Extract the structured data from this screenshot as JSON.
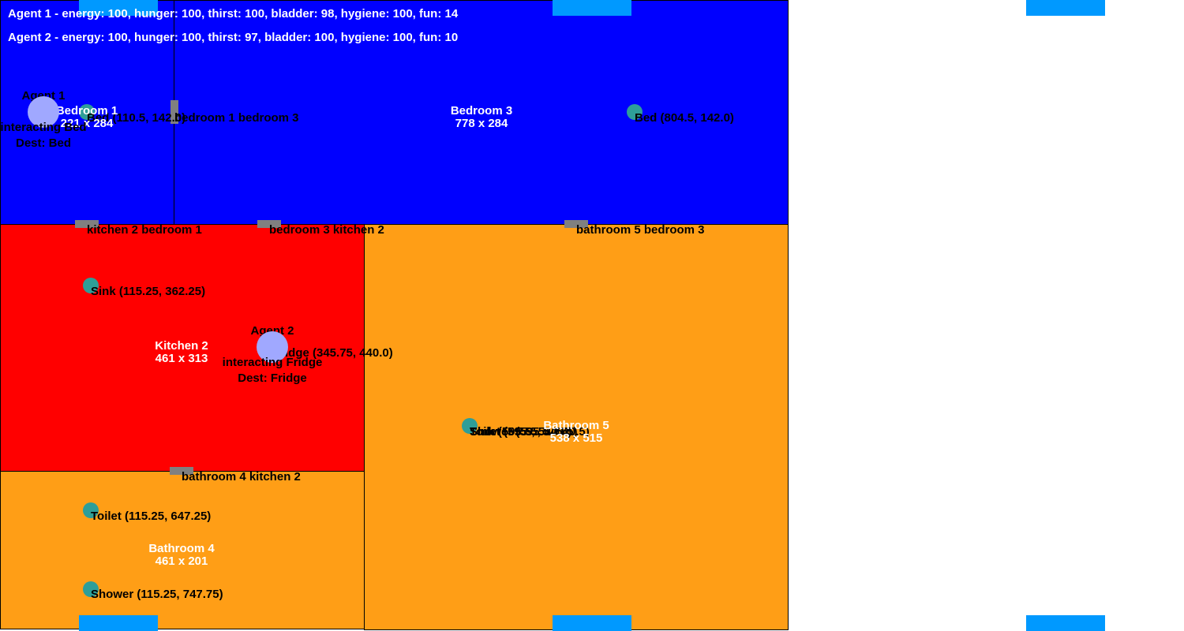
{
  "colors": {
    "bedroom": "#0000ff",
    "kitchen": "#ff0000",
    "bathroom": "#ff9e16",
    "door": "#808080",
    "spawn": "#0099ff",
    "object": "#2e9e98",
    "agent": "#a0a8ff"
  },
  "status": {
    "agent1": "Agent 1 - energy: 100, hunger: 100, thirst: 100, bladder: 98, hygiene: 100, fun: 14",
    "agent2": "Agent 2 - energy: 100, hunger: 100, thirst: 97, bladder: 100, hygiene: 100, fun: 10"
  },
  "rooms": {
    "bedroom1": {
      "name": "Bedroom 1",
      "size": "221 x 284"
    },
    "bedroom3": {
      "name": "Bedroom 3",
      "size": "778 x 284"
    },
    "kitchen2": {
      "name": "Kitchen 2",
      "size": "461 x 313"
    },
    "bathroom4": {
      "name": "Bathroom 4",
      "size": "461 x 201"
    },
    "bathroom5": {
      "name": "Bathroom 5",
      "size": "538 x 515"
    }
  },
  "doors": {
    "bedroom1_bedroom3": "bedroom 1 bedroom 3",
    "kitchen2_bedroom1": "kitchen 2 bedroom 1",
    "bedroom3_kitchen2": "bedroom 3 kitchen 2",
    "bathroom5_bedroom3": "bathroom 5 bedroom 3",
    "bathroom4_kitchen2": "bathroom 4 kitchen 2"
  },
  "objects": {
    "bed1": "Bed (110.5, 142.0)",
    "bed3": "Bed (804.5, 142.0)",
    "sink": "Sink (115.25, 362.25)",
    "fridge": "Fridge (345.75, 440.0)",
    "toilet4": "Toilet (115.25, 647.25)",
    "shower4": "Shower (115.25, 747.75)",
    "sink5": "Sink (595.5, 540.5)",
    "toilet5": "Toilet (595.5, 540.5)",
    "shower5": "Shower (595.5, 540.5)"
  },
  "agents": {
    "agent1": {
      "name": "Agent 1",
      "action": "interacting Bed",
      "dest": "Dest: Bed"
    },
    "agent2": {
      "name": "Agent 2",
      "action": "interacting Fridge",
      "dest": "Dest: Fridge"
    }
  }
}
